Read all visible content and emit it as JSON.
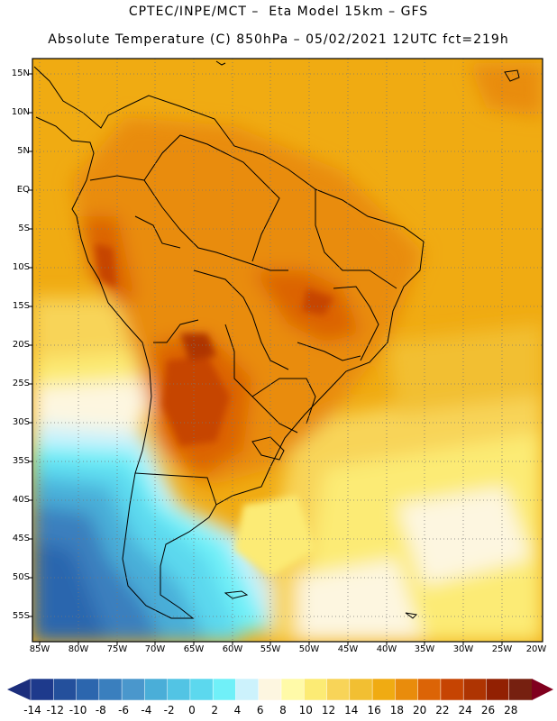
{
  "title": {
    "line1": "CPTEC/INPE/MCT –  Eta Model 15km – GFS",
    "line2": "Absolute Temperature (C) 850hPa – 05/02/2021 12UTC fct=219h"
  },
  "lat_labels": [
    "15N",
    "10N",
    "5N",
    "EQ",
    "5S",
    "10S",
    "15S",
    "20S",
    "25S",
    "30S",
    "35S",
    "40S",
    "45S",
    "50S",
    "55S"
  ],
  "lon_labels": [
    "85W",
    "80W",
    "75W",
    "70W",
    "65W",
    "60W",
    "55W",
    "50W",
    "45W",
    "40W",
    "35W",
    "30W",
    "25W",
    "20W"
  ],
  "colorbar": {
    "labels": [
      "-14",
      "-12",
      "-10",
      "-8",
      "-6",
      "-4",
      "-2",
      "0",
      "2",
      "4",
      "6",
      "8",
      "10",
      "12",
      "14",
      "16",
      "18",
      "20",
      "22",
      "24",
      "26",
      "28"
    ],
    "colors": [
      "#1e3a8c",
      "#24509c",
      "#2c66ae",
      "#3a7fbe",
      "#4a97cc",
      "#4aaed8",
      "#52c4e4",
      "#5cd8ee",
      "#70f0f8",
      "#ccf2fc",
      "#fdf6e0",
      "#fffaa8",
      "#fceb74",
      "#f8d458",
      "#f2bf32",
      "#f0ab12",
      "#e98c0c",
      "#dc6406",
      "#c64402",
      "#ae3402",
      "#922002",
      "#762010"
    ],
    "left_arrow_color": "#1c2e7c",
    "right_arrow_color": "#80001e"
  },
  "legend": {
    "field_colors": {
      "ocean_north": "#f0ab12",
      "land_warm": "#e98c0c",
      "land_hot": "#c64402",
      "mid_yellow": "#f8d458",
      "pale": "#fceb74",
      "cream": "#fdf6e0",
      "cold_cyan": "#5cd8ee",
      "cold_blue": "#2c66ae",
      "cold_deep": "#24509c"
    }
  }
}
